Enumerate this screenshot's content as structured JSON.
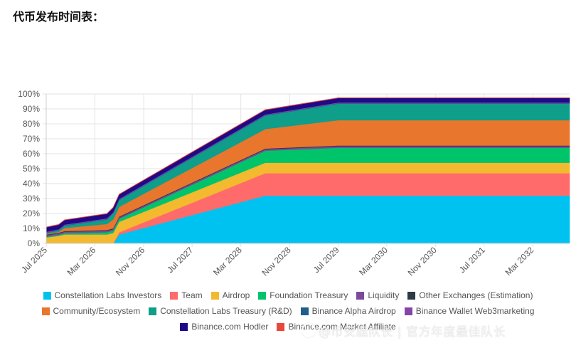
{
  "page": {
    "title": "代币发布时间表："
  },
  "watermark": {
    "text": "@币安鹿队长 | 官方年度最佳队长"
  },
  "chart_data": {
    "type": "area",
    "stacked": true,
    "xlim": [
      "2025-07-01",
      "2032-09-01"
    ],
    "ylim": [
      0,
      100
    ],
    "yticks": [
      "0%",
      "10%",
      "20%",
      "30%",
      "40%",
      "50%",
      "60%",
      "70%",
      "80%",
      "90%",
      "100%"
    ],
    "xticks": [
      {
        "label": "Jul 2025",
        "date": "2025-07-01"
      },
      {
        "label": "Mar 2026",
        "date": "2026-03-01"
      },
      {
        "label": "Nov 2026",
        "date": "2026-11-01"
      },
      {
        "label": "Jul 2027",
        "date": "2027-07-01"
      },
      {
        "label": "Mar 2028",
        "date": "2028-03-01"
      },
      {
        "label": "Nov 2028",
        "date": "2028-11-01"
      },
      {
        "label": "Jul 2029",
        "date": "2029-07-01"
      },
      {
        "label": "Mar 2030",
        "date": "2030-03-01"
      },
      {
        "label": "Nov 2030",
        "date": "2030-11-01"
      },
      {
        "label": "Jul 2031",
        "date": "2031-07-01"
      },
      {
        "label": "Mar 2032",
        "date": "2032-03-01"
      }
    ],
    "x": [
      "2025-07-01",
      "2025-09-01",
      "2025-10-01",
      "2026-05-01",
      "2026-06-01",
      "2026-07-01",
      "2028-07-01",
      "2029-07-01",
      "2032-09-01"
    ],
    "grid": true,
    "legend_position": "bottom",
    "series": [
      {
        "name": "Constellation Labs Investors",
        "color": "#00c2f0",
        "values": [
          0,
          0,
          0,
          0,
          0,
          6,
          32,
          32,
          32
        ]
      },
      {
        "name": "Team",
        "color": "#ff6b6b",
        "values": [
          0,
          0,
          0,
          0,
          0,
          1.5,
          15,
          15,
          15
        ]
      },
      {
        "name": "Airdrop",
        "color": "#f3b92f",
        "values": [
          4,
          5,
          6,
          6,
          7,
          7,
          7,
          7,
          7
        ]
      },
      {
        "name": "Foundation Treasury",
        "color": "#00c46a",
        "values": [
          0.5,
          0.7,
          0.8,
          1.5,
          1.6,
          2,
          8,
          10,
          10
        ]
      },
      {
        "name": "Liquidity",
        "color": "#7d4a9a",
        "values": [
          1,
          1,
          1,
          1,
          1,
          1,
          1,
          1,
          1
        ]
      },
      {
        "name": "Other Exchanges (Estimation)",
        "color": "#2b3a46",
        "values": [
          0.5,
          0.5,
          0.5,
          0.5,
          0.5,
          0.5,
          0.5,
          0.5,
          0.5
        ]
      },
      {
        "name": "Community/Ecosystem",
        "color": "#e8762d",
        "values": [
          0.5,
          0.5,
          2,
          4,
          6,
          6.5,
          13,
          17,
          17
        ]
      },
      {
        "name": "Constellation Labs Treasury (R&D)",
        "color": "#0e9e8a",
        "values": [
          0.5,
          1,
          1.5,
          3,
          4,
          4.5,
          9,
          11,
          11
        ]
      },
      {
        "name": "Binance Alpha Airdrop",
        "color": "#1e5f8c",
        "values": [
          0.3,
          0.3,
          0.3,
          0.3,
          0.3,
          0.3,
          0.3,
          0.3,
          0.3
        ]
      },
      {
        "name": "Binance Wallet Web3marketing",
        "color": "#8545a8",
        "values": [
          0.5,
          0.5,
          0.5,
          0.5,
          0.5,
          0.5,
          0.5,
          0.5,
          0.5
        ]
      },
      {
        "name": "Binance.com Hodler",
        "color": "#1e0a87",
        "values": [
          3,
          3,
          3,
          3,
          3,
          3,
          3,
          3,
          3
        ]
      },
      {
        "name": "Binance.com Market Affiliate",
        "color": "#e8473b",
        "values": [
          0.2,
          0.2,
          0.2,
          0.2,
          0.2,
          0.2,
          0.2,
          0.2,
          0.2
        ]
      }
    ]
  }
}
